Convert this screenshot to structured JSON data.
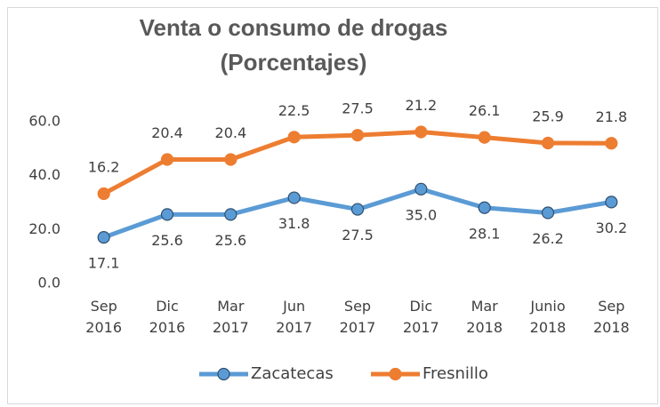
{
  "chart_data": {
    "type": "line",
    "stacked": true,
    "title": "Venta o consumo de drogas",
    "subtitle": "(Porcentajes)",
    "categories": [
      "Sep\n2016",
      "Dic\n2016",
      "Mar\n2017",
      "Jun\n2017",
      "Sep\n2017",
      "Dic\n2017",
      "Mar\n2018",
      "Junio\n2018",
      "Sep\n2018"
    ],
    "series": [
      {
        "name": "Zacatecas",
        "color": "#5b9bd5",
        "values": [
          17.1,
          25.6,
          25.6,
          31.8,
          27.5,
          35.0,
          28.1,
          26.2,
          30.2
        ],
        "value_labels": [
          "17.1",
          "25.6",
          "25.6",
          "31.8",
          "27.5",
          "35.0",
          "28.1",
          "26.2",
          "30.2"
        ]
      },
      {
        "name": "Fresnillo",
        "color": "#ed7d31",
        "values": [
          16.2,
          20.4,
          20.4,
          22.5,
          27.5,
          21.2,
          26.1,
          25.9,
          21.8
        ],
        "value_labels": [
          "16.2",
          "20.4",
          "20.4",
          "22.5",
          "27.5",
          "21.2",
          "26.1",
          "25.9",
          "21.8"
        ]
      }
    ],
    "ylim": [
      0,
      60
    ],
    "yticks": [
      {
        "value": 0,
        "label": "0.0"
      },
      {
        "value": 20,
        "label": "20.0"
      },
      {
        "value": 40,
        "label": "40.0"
      },
      {
        "value": 60,
        "label": "60.0"
      }
    ],
    "grid": false,
    "legend": "bottom"
  }
}
